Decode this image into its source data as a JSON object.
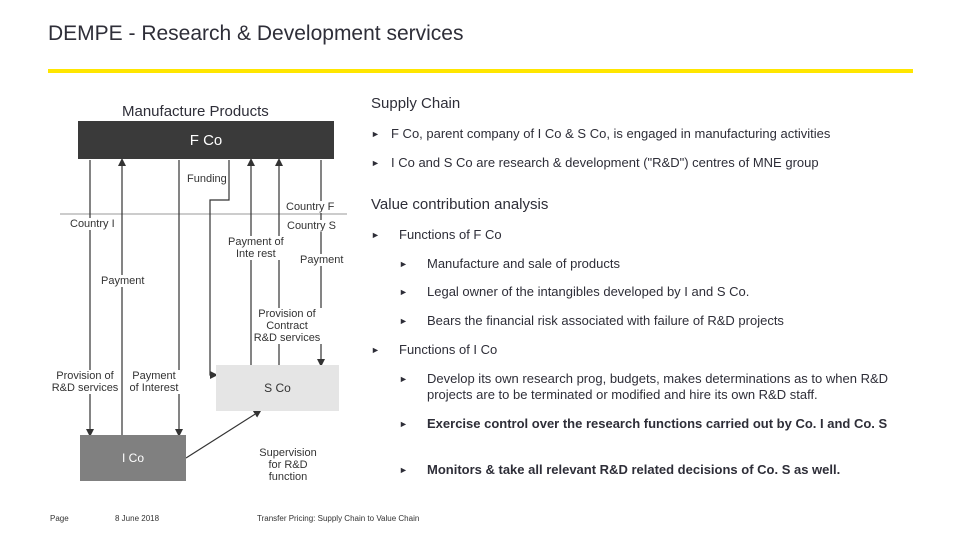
{
  "title": "DEMPE - Research & Development services",
  "diagram": {
    "heading": "Manufacture Products",
    "f_co": "F Co",
    "s_co": "S Co",
    "i_co": "I Co",
    "funding": "Funding",
    "country_f": "Country F",
    "country_s": "Country S",
    "country_i": "Country I",
    "payment_of_interest_1": "Payment of",
    "payment_of_interest_2": "Inte rest",
    "payment_right": "Payment",
    "payment_left": "Payment",
    "provision_contract_1": "Provision of",
    "provision_contract_2": "Contract",
    "provision_contract_3": "R&D services",
    "provision_rd_1": "Provision of",
    "provision_rd_2": "R&D services",
    "payment_interest_1": "Payment",
    "payment_interest_2": "of Interest",
    "supervision_1": "Supervision",
    "supervision_2": "for R&D",
    "supervision_3": "function"
  },
  "supply_chain": {
    "heading": "Supply Chain",
    "bullets": [
      "F Co, parent company of I Co & S Co, is engaged in manufacturing activities",
      "I Co and S Co are research & development (\"R&D\") centres of MNE group"
    ]
  },
  "value_contribution": {
    "heading": "Value contribution analysis",
    "f_co_heading": "Functions of F Co",
    "f_co_items": [
      "Manufacture and sale of products",
      "Legal owner of the intangibles developed by I and S Co.",
      "Bears the financial risk associated with failure of R&D projects"
    ],
    "i_co_heading": "Functions of I Co",
    "i_co_items": [
      "Develop its own research prog, budgets, makes determinations as to when R&D projects are to be terminated or modified and hire its own R&D staff.",
      "Exercise control over the research functions carried out by Co. I and Co. S",
      "Monitors & take all relevant R&D related decisions of Co. S as well."
    ]
  },
  "footer": {
    "page": "Page",
    "date": "8 June 2018",
    "doc": "Transfer Pricing: Supply Chain to Value Chain"
  },
  "colors": {
    "accent": "#ffe600",
    "f_co_fill": "#3a3a3a",
    "s_co_fill": "#e5e5e5",
    "i_co_fill": "#808080"
  }
}
